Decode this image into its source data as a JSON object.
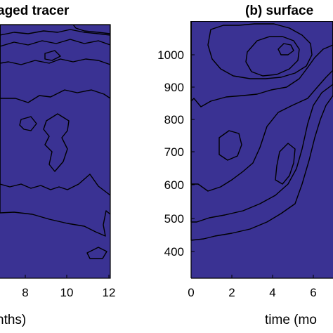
{
  "chart_data": [
    {
      "type": "heatmap",
      "title": "aged tracer",
      "xlabel": "nths)",
      "x_ticks": [
        "8",
        "10",
        "12"
      ],
      "xlim": [
        5.5,
        12
      ],
      "colormap": "parula",
      "levels": [
        "#3a3293",
        "#2e5bd6",
        "#1d86dd",
        "#1aa6c7",
        "#34b89a",
        "#7ec46d",
        "#cdbd48",
        "#f6c23b"
      ]
    },
    {
      "type": "heatmap",
      "title": "(b) surface",
      "xlabel": "time (mo",
      "x_ticks": [
        "0",
        "2",
        "4",
        "6"
      ],
      "y_ticks": [
        "400",
        "500",
        "600",
        "700",
        "800",
        "900",
        "1000"
      ],
      "xlim": [
        0,
        7.1
      ],
      "ylim": [
        350,
        1100
      ],
      "colormap": "parula",
      "levels": [
        "#3a3293",
        "#2e5bd6",
        "#1d86dd",
        "#1aa6c7",
        "#34b89a",
        "#7ec46d",
        "#cdbd48"
      ]
    }
  ]
}
